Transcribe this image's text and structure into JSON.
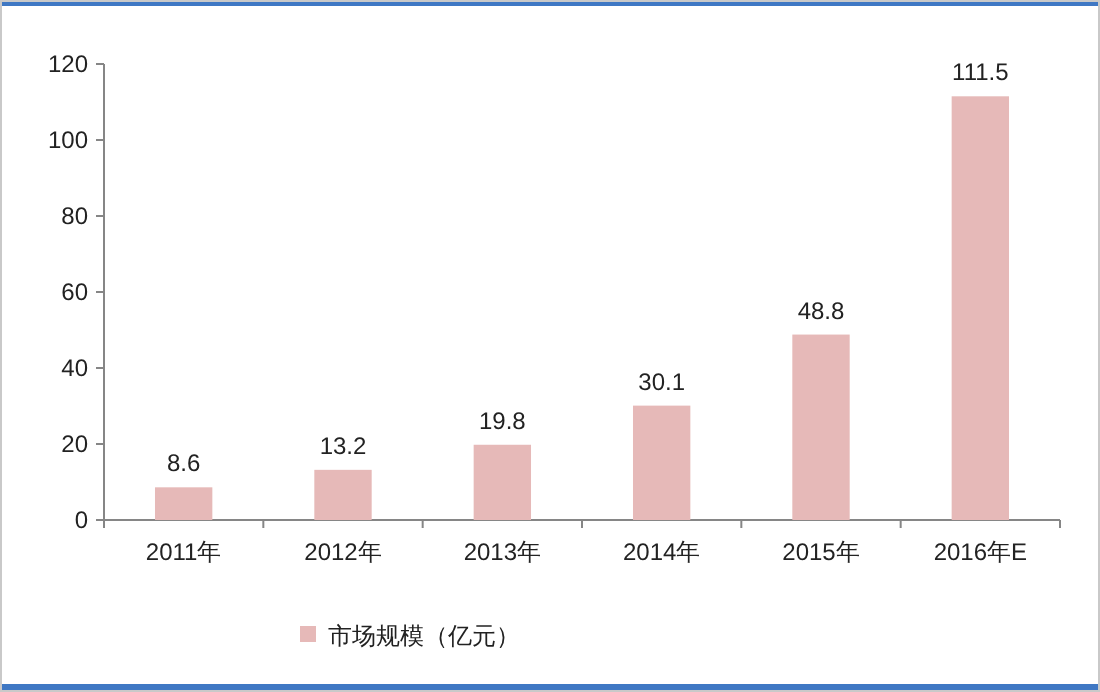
{
  "chart_data": {
    "type": "bar",
    "categories": [
      "2011年",
      "2012年",
      "2013年",
      "2014年",
      "2015年",
      "2016年E"
    ],
    "series": [
      {
        "name": "市场规模（亿元）",
        "color": "#e6b9b8",
        "values": [
          8.6,
          13.2,
          19.8,
          30.1,
          48.8,
          111.5
        ]
      }
    ],
    "ylim": [
      0,
      120
    ],
    "yticks": [
      0,
      20,
      40,
      60,
      80,
      100,
      120
    ],
    "data_labels": true,
    "legend": "bottom",
    "grid": false
  }
}
